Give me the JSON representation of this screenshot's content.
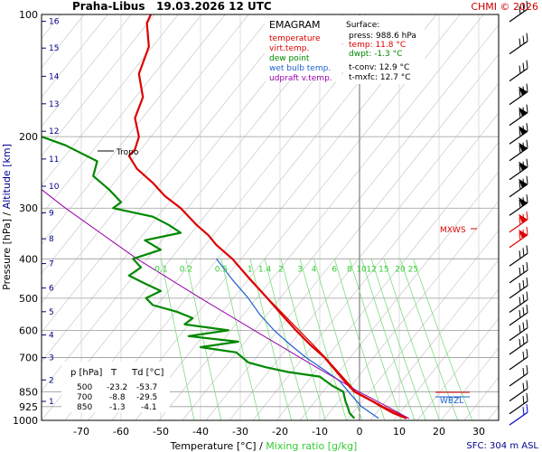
{
  "header": {
    "station_date": "Praha-Libus   19.03.2026 12 UTC",
    "copyright": "CHMI © 2026"
  },
  "legend": {
    "title": "EMAGRAM",
    "items": [
      {
        "label": "temperature",
        "color": "#dd0000"
      },
      {
        "label": "virt.temp.",
        "color": "#dd0000"
      },
      {
        "label": "dew point",
        "color": "#008800"
      },
      {
        "label": "wet bulb temp.",
        "color": "#2060d0"
      },
      {
        "label": "udpraft v.temp.",
        "color": "#9900aa"
      }
    ]
  },
  "surface": {
    "title": "Surface:",
    "press": "press: 988.6 hPa",
    "temp": "temp: 11.8 °C",
    "dwpt": "dwpt: -1.3 °C",
    "tconv": "t-conv: 12.9 °C",
    "tmxfc": "t-mxfc: 12.7 °C"
  },
  "levels_table": {
    "headers": [
      "p [hPa]",
      "T",
      "Td [°C]"
    ],
    "rows": [
      [
        "500",
        "-23.2",
        "-53.7"
      ],
      [
        "700",
        "-8.8",
        "-29.5"
      ],
      [
        "850",
        "-1.3",
        "-4.1"
      ]
    ]
  },
  "labels": {
    "tropo": "Tropo",
    "mxws": "MXWS",
    "wbzl": "WBZL",
    "sfc": "SFC: 304 m ASL"
  },
  "chart_data": {
    "type": "line",
    "xlabel": "Temperature [°C]",
    "xlabel_sep": " / ",
    "xlabel2": "Mixing ratio [g/kg]",
    "ylabel": "Pressure [hPa]",
    "ylabel_sep": " / ",
    "ylabel2": "Altitude [km]",
    "xlim": [
      -80,
      35
    ],
    "ylim": [
      100,
      1000
    ],
    "y_scale": "log",
    "x_ticks": [
      -70,
      -60,
      -50,
      -40,
      -30,
      -20,
      -10,
      0,
      10,
      20,
      30
    ],
    "pressure_ticks": [
      100,
      200,
      300,
      400,
      500,
      600,
      700,
      850,
      925,
      1000
    ],
    "altitude_ticks": [
      {
        "km": 1,
        "p": 898
      },
      {
        "km": 2,
        "p": 795
      },
      {
        "km": 3,
        "p": 701
      },
      {
        "km": 4,
        "p": 616
      },
      {
        "km": 5,
        "p": 540
      },
      {
        "km": 6,
        "p": 472
      },
      {
        "km": 7,
        "p": 411
      },
      {
        "km": 8,
        "p": 357
      },
      {
        "km": 9,
        "p": 308
      },
      {
        "km": 10,
        "p": 265
      },
      {
        "km": 11,
        "p": 227
      },
      {
        "km": 12,
        "p": 194
      },
      {
        "km": 13,
        "p": 166
      },
      {
        "km": 14,
        "p": 142
      },
      {
        "km": 15,
        "p": 121
      },
      {
        "km": 16,
        "p": 104
      }
    ],
    "mixing_ratio_labels": [
      "0.1",
      "0.2",
      "0.5",
      "1",
      "1.4",
      "2",
      "3",
      "4",
      "6",
      "8",
      "10",
      "12",
      "15",
      "20",
      "25"
    ],
    "mixing_ratio_values": [
      0.1,
      0.2,
      0.5,
      1,
      1.4,
      2,
      3,
      4,
      6,
      8,
      10,
      12,
      15,
      20,
      25
    ],
    "tropopause_p": 223,
    "mxws_p": 340,
    "wbzl_p": 862,
    "series": [
      {
        "name": "temperature",
        "color": "#dd0000",
        "points": [
          [
            988.6,
            11.8
          ],
          [
            960,
            8.5
          ],
          [
            925,
            5.5
          ],
          [
            900,
            3.5
          ],
          [
            850,
            -1.3
          ],
          [
            800,
            -3.8
          ],
          [
            750,
            -6.2
          ],
          [
            700,
            -8.8
          ],
          [
            650,
            -12.5
          ],
          [
            600,
            -16.0
          ],
          [
            550,
            -19.5
          ],
          [
            500,
            -23.2
          ],
          [
            450,
            -27.5
          ],
          [
            400,
            -32.0
          ],
          [
            370,
            -36.0
          ],
          [
            350,
            -38.0
          ],
          [
            330,
            -41.0
          ],
          [
            300,
            -45.0
          ],
          [
            280,
            -49.0
          ],
          [
            260,
            -52.0
          ],
          [
            240,
            -56.0
          ],
          [
            223,
            -58.0
          ],
          [
            215,
            -56.5
          ],
          [
            200,
            -55.5
          ],
          [
            180,
            -56.5
          ],
          [
            160,
            -54.5
          ],
          [
            140,
            -55.5
          ],
          [
            120,
            -53.0
          ],
          [
            105,
            -53.5
          ],
          [
            100,
            -52.5
          ]
        ]
      },
      {
        "name": "virt.temp.",
        "color": "#dd0000",
        "points": [
          [
            988.6,
            12.4
          ],
          [
            925,
            6.0
          ],
          [
            850,
            -0.9
          ],
          [
            700,
            -8.6
          ],
          [
            500,
            -23.1
          ],
          [
            400,
            -32.0
          ]
        ]
      },
      {
        "name": "dew point",
        "color": "#008800",
        "points": [
          [
            988.6,
            -1.3
          ],
          [
            960,
            -2.5
          ],
          [
            925,
            -3.0
          ],
          [
            900,
            -3.5
          ],
          [
            850,
            -4.1
          ],
          [
            820,
            -7.0
          ],
          [
            780,
            -10.0
          ],
          [
            760,
            -18.0
          ],
          [
            740,
            -23.5
          ],
          [
            720,
            -28.0
          ],
          [
            700,
            -29.5
          ],
          [
            680,
            -31.0
          ],
          [
            660,
            -40.0
          ],
          [
            640,
            -30.5
          ],
          [
            620,
            -43.0
          ],
          [
            600,
            -33.0
          ],
          [
            580,
            -44.0
          ],
          [
            560,
            -42.0
          ],
          [
            540,
            -46.0
          ],
          [
            520,
            -52.0
          ],
          [
            500,
            -53.7
          ],
          [
            480,
            -50.0
          ],
          [
            460,
            -54.0
          ],
          [
            440,
            -58.0
          ],
          [
            420,
            -55.0
          ],
          [
            400,
            -57.0
          ],
          [
            380,
            -50.0
          ],
          [
            360,
            -54.0
          ],
          [
            345,
            -45.0
          ],
          [
            330,
            -48.0
          ],
          [
            315,
            -52.0
          ],
          [
            300,
            -62.0
          ],
          [
            290,
            -60.0
          ],
          [
            270,
            -63.0
          ],
          [
            250,
            -67.0
          ],
          [
            230,
            -66.0
          ],
          [
            210,
            -74.0
          ],
          [
            200,
            -80.0
          ]
        ]
      },
      {
        "name": "wet bulb temp.",
        "color": "#2060d0",
        "points": [
          [
            988.6,
            4.8
          ],
          [
            925,
            0.5
          ],
          [
            850,
            -2.8
          ],
          [
            800,
            -5.0
          ],
          [
            750,
            -9.0
          ],
          [
            700,
            -13.5
          ],
          [
            650,
            -17.5
          ],
          [
            600,
            -21.5
          ],
          [
            550,
            -25.0
          ],
          [
            500,
            -28.0
          ],
          [
            450,
            -32.0
          ],
          [
            400,
            -36.0
          ]
        ]
      },
      {
        "name": "udpraft v.temp.",
        "color": "#9900aa",
        "points": [
          [
            988.6,
            12.4
          ],
          [
            925,
            7.0
          ],
          [
            880,
            2.8
          ],
          [
            850,
            -0.2
          ],
          [
            800,
            -4.8
          ],
          [
            750,
            -9.8
          ],
          [
            700,
            -15.0
          ],
          [
            600,
            -26.5
          ],
          [
            500,
            -40.0
          ],
          [
            400,
            -56.0
          ],
          [
            300,
            -74.0
          ],
          [
            270,
            -80.0
          ]
        ]
      }
    ]
  }
}
